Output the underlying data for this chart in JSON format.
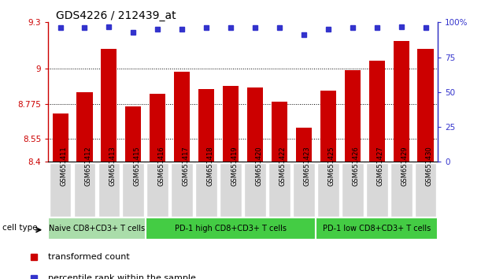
{
  "title": "GDS4226 / 212439_at",
  "samples": [
    "GSM651411",
    "GSM651412",
    "GSM651413",
    "GSM651415",
    "GSM651416",
    "GSM651417",
    "GSM651418",
    "GSM651419",
    "GSM651420",
    "GSM651422",
    "GSM651423",
    "GSM651425",
    "GSM651426",
    "GSM651427",
    "GSM651429",
    "GSM651430"
  ],
  "bar_values": [
    8.71,
    8.85,
    9.13,
    8.76,
    8.84,
    8.98,
    8.87,
    8.89,
    8.88,
    8.79,
    8.62,
    8.86,
    8.99,
    9.05,
    9.18,
    9.13
  ],
  "dot_values_pct": [
    96,
    96,
    97,
    93,
    95,
    95,
    96,
    96,
    96,
    96,
    91,
    95,
    96,
    96,
    97,
    96
  ],
  "ylim_left": [
    8.4,
    9.3
  ],
  "ylim_right": [
    0,
    100
  ],
  "yticks_left": [
    8.4,
    8.55,
    8.775,
    9.0,
    9.3
  ],
  "yticks_right": [
    0,
    25,
    50,
    75,
    100
  ],
  "ytick_labels_left": [
    "8.4",
    "8.55",
    "8.775",
    "9",
    "9.3"
  ],
  "ytick_labels_right": [
    "0",
    "25",
    "50",
    "75",
    "100%"
  ],
  "hlines": [
    9.0,
    8.775,
    8.55
  ],
  "bar_color": "#cc0000",
  "dot_color": "#3333cc",
  "group_configs": [
    {
      "label": "Naive CD8+CD3+ T cells",
      "start": 0,
      "end": 4,
      "color": "#aaddaa"
    },
    {
      "label": "PD-1 high CD8+CD3+ T cells",
      "start": 4,
      "end": 11,
      "color": "#44cc44"
    },
    {
      "label": "PD-1 low CD8+CD3+ T cells",
      "start": 11,
      "end": 16,
      "color": "#44cc44"
    }
  ],
  "cell_type_label": "cell type",
  "legend_bar_label": "transformed count",
  "legend_dot_label": "percentile rank within the sample",
  "left_tick_color": "#cc0000",
  "right_tick_color": "#3333cc",
  "title_fontsize": 10,
  "tick_fontsize": 7.5,
  "sample_fontsize": 6,
  "group_label_fontsize": 7
}
